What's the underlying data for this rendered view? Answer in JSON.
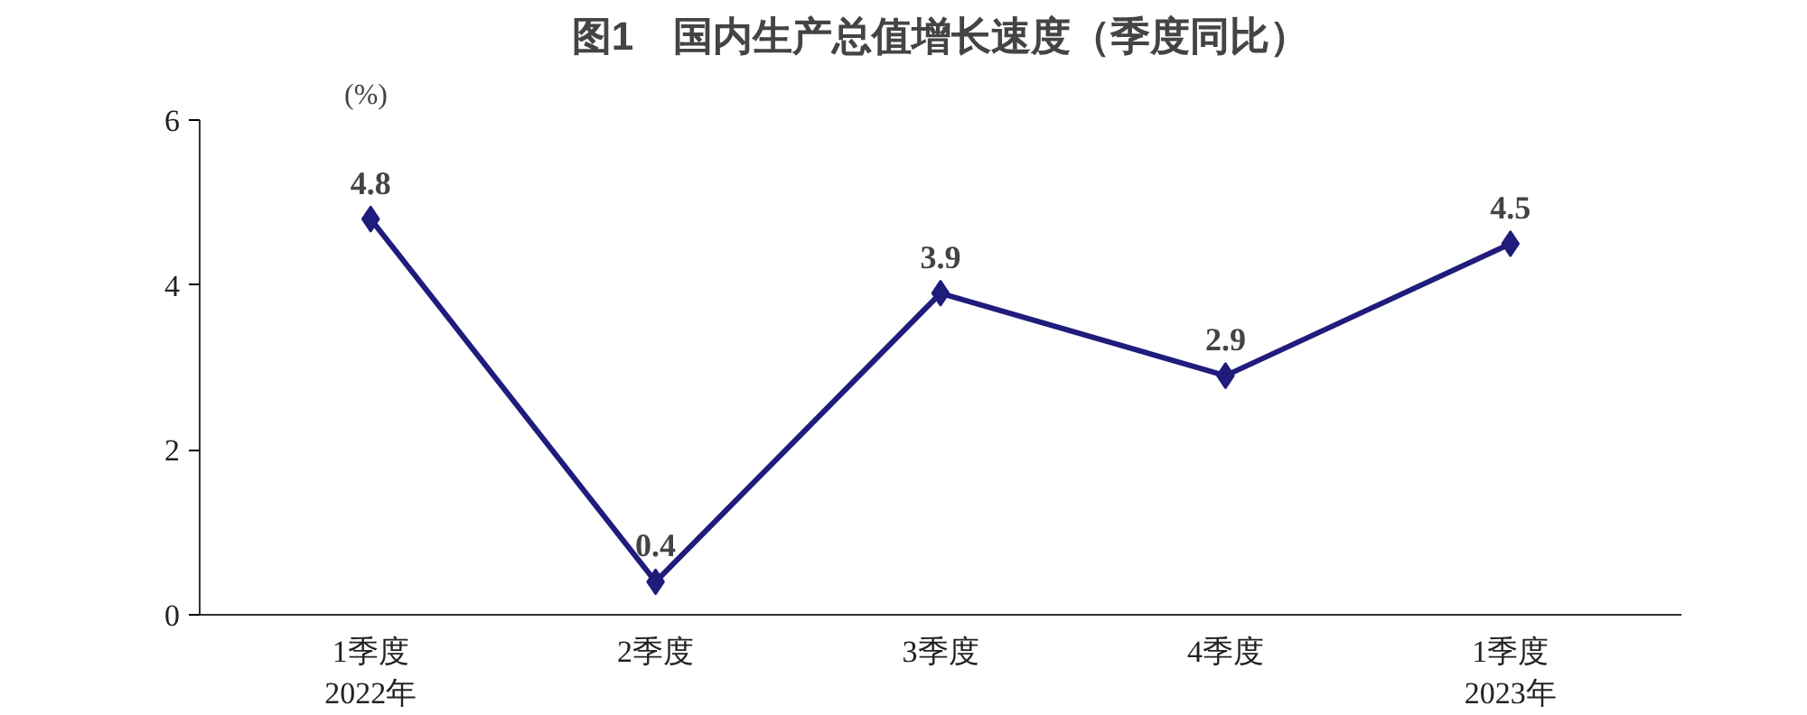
{
  "chart_data": {
    "type": "line",
    "title": "图1　国内生产总值增长速度（季度同比）",
    "ylabel": "(%)",
    "categories": [
      "1季度\n2022年",
      "2季度",
      "3季度",
      "4季度",
      "1季度\n2023年"
    ],
    "series": [
      {
        "color": "#1f1c7c",
        "values": [
          4.8,
          0.4,
          3.9,
          2.9,
          4.5
        ]
      }
    ],
    "ylim": [
      0,
      6
    ],
    "yticks": [
      0,
      2,
      4,
      6
    ],
    "data_labels": true,
    "marker": "diamond",
    "line_style": "solid",
    "grid": false
  }
}
